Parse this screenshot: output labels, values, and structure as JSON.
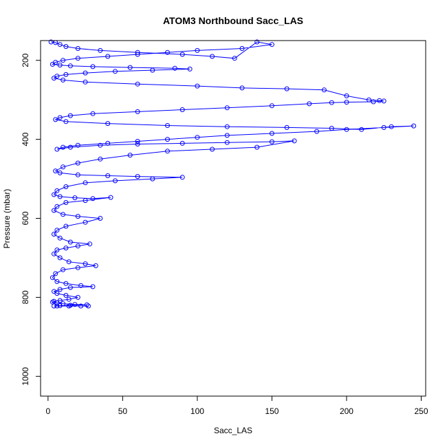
{
  "chart_data": {
    "type": "scatter",
    "title": "ATOM3 Northbound Sacc_LAS",
    "xlabel": "Sacc_LAS",
    "ylabel": "Pressure (mbar)",
    "xlim": [
      -5,
      253
    ],
    "ylim": [
      1050,
      150
    ],
    "y_reversed": true,
    "x_ticks": [
      0,
      50,
      100,
      150,
      200,
      250
    ],
    "y_ticks": [
      200,
      400,
      600,
      800,
      1000
    ],
    "grid": false,
    "legend": "none",
    "style": "points connected by lines (type='o')",
    "color": "#0000ff",
    "series": [
      {
        "x": [
          2,
          5,
          8,
          12,
          20,
          35,
          60,
          90,
          110,
          125,
          140,
          150,
          130,
          100,
          80,
          60,
          40,
          20,
          10,
          5,
          3,
          8,
          15,
          30,
          55,
          85,
          95,
          70,
          45,
          25,
          12,
          6,
          4,
          10,
          25,
          60,
          100,
          130,
          160,
          185,
          200,
          215,
          222,
          225,
          218,
          200,
          190,
          175,
          150,
          120,
          90,
          60,
          30,
          15,
          8,
          5,
          12,
          40,
          80,
          120,
          160,
          190,
          210,
          230,
          245,
          225,
          200,
          180,
          150,
          120,
          100,
          80,
          60,
          40,
          20,
          10,
          6,
          15,
          35,
          60,
          90,
          120,
          150,
          165,
          140,
          110,
          80,
          55,
          35,
          20,
          10,
          5,
          8,
          20,
          40,
          60,
          90,
          70,
          45,
          25,
          12,
          6,
          4,
          8,
          18,
          30,
          42,
          25,
          12,
          6,
          4,
          10,
          20,
          35,
          25,
          12,
          6,
          4,
          8,
          15,
          28,
          20,
          12,
          6,
          4,
          8,
          14,
          25,
          32,
          20,
          10,
          5,
          3,
          6,
          12,
          22,
          30,
          15,
          8,
          4,
          6,
          12,
          20,
          14,
          8,
          4,
          3,
          6,
          10,
          18,
          26,
          15,
          8,
          4,
          6,
          14,
          22,
          27
        ],
        "y": [
          150,
          155,
          160,
          165,
          170,
          175,
          180,
          185,
          190,
          195,
          150,
          160,
          170,
          175,
          180,
          185,
          190,
          195,
          200,
          205,
          210,
          212,
          214,
          216,
          218,
          220,
          222,
          225,
          228,
          232,
          236,
          240,
          245,
          250,
          255,
          260,
          265,
          270,
          272,
          275,
          290,
          300,
          302,
          303,
          305,
          306,
          307,
          310,
          315,
          320,
          325,
          330,
          335,
          340,
          345,
          350,
          355,
          360,
          365,
          368,
          370,
          372,
          375,
          368,
          366,
          370,
          375,
          380,
          385,
          390,
          395,
          400,
          405,
          410,
          415,
          420,
          425,
          420,
          415,
          412,
          410,
          408,
          406,
          404,
          420,
          425,
          430,
          440,
          450,
          460,
          470,
          480,
          485,
          490,
          492,
          494,
          496,
          500,
          505,
          510,
          520,
          530,
          540,
          545,
          548,
          550,
          547,
          555,
          560,
          570,
          580,
          590,
          595,
          600,
          610,
          620,
          630,
          640,
          650,
          660,
          665,
          670,
          675,
          680,
          690,
          700,
          710,
          715,
          720,
          725,
          730,
          740,
          750,
          760,
          765,
          770,
          773,
          775,
          780,
          785,
          790,
          795,
          800,
          805,
          808,
          810,
          812,
          814,
          816,
          818,
          819,
          820,
          821,
          822,
          822,
          822,
          822,
          822
        ]
      }
    ]
  }
}
